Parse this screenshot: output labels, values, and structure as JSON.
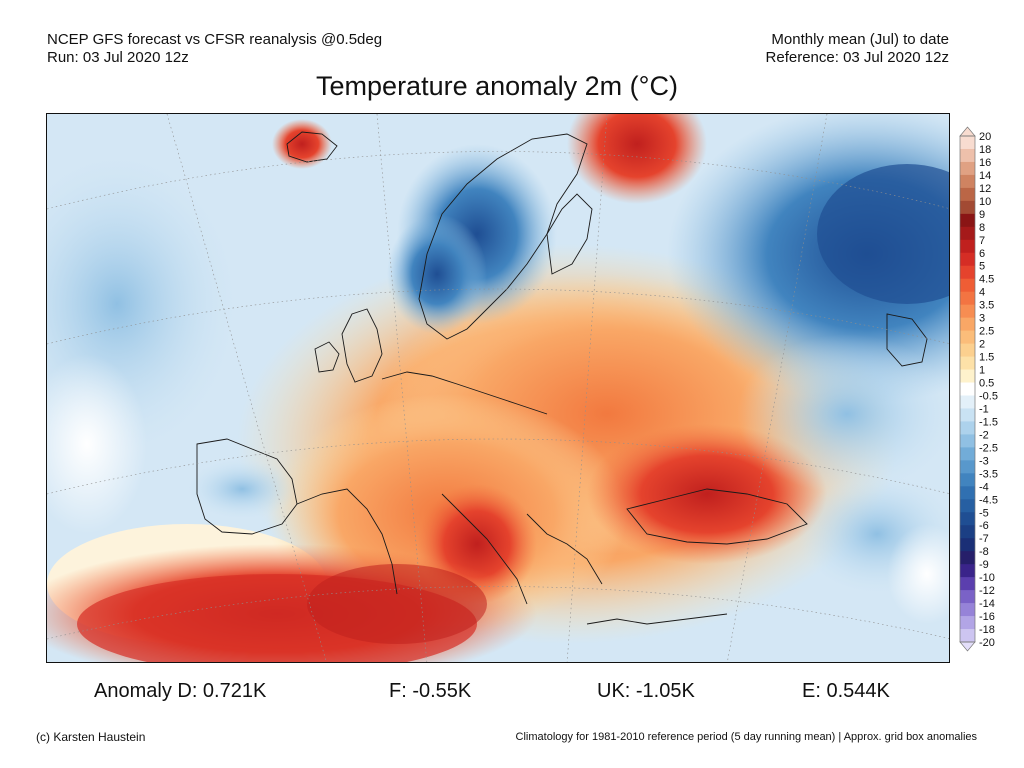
{
  "header": {
    "left_line1": "NCEP GFS forecast vs CFSR reanalysis @0.5deg",
    "left_line2": "Run: 03 Jul 2020 12z",
    "right_line1": "Monthly mean (Jul) to date",
    "right_line2": "Reference: 03 Jul 2020 12z"
  },
  "title": "Temperature anomaly 2m (°C)",
  "colorbar": {
    "levels": [
      "20",
      "18",
      "16",
      "14",
      "12",
      "10",
      "9",
      "8",
      "7",
      "6",
      "5",
      "4.5",
      "4",
      "3.5",
      "3",
      "2.5",
      "2",
      "1.5",
      "1",
      "0.5",
      "-0.5",
      "-1",
      "-1.5",
      "-2",
      "-2.5",
      "-3",
      "-3.5",
      "-4",
      "-4.5",
      "-5",
      "-6",
      "-7",
      "-8",
      "-9",
      "-10",
      "-12",
      "-14",
      "-16",
      "-18",
      "-20"
    ],
    "colors": [
      "#f8dcd0",
      "#eec0ab",
      "#e0a183",
      "#cf8361",
      "#bb6646",
      "#a24a33",
      "#8a1515",
      "#a51a1a",
      "#c0201e",
      "#d52d25",
      "#e5432d",
      "#ef5d35",
      "#f37442",
      "#f78d52",
      "#f9a766",
      "#fbbd7a",
      "#fcd08f",
      "#fde1a8",
      "#fef2cc",
      "#ffffff",
      "#e3f0f9",
      "#c9e2f3",
      "#add2ec",
      "#90c0e3",
      "#72acd8",
      "#5898cc",
      "#4184bf",
      "#3070b1",
      "#265fa2",
      "#1f4e93",
      "#1b3f84",
      "#1a2f76",
      "#261f6a",
      "#3a248a",
      "#5b3fae",
      "#7a62c7",
      "#9683d8",
      "#b2a5e6",
      "#cdc5f1",
      "#e3defa"
    ]
  },
  "stats": {
    "d": "Anomaly D: 0.721K",
    "f": "F: -0.55K",
    "uk": "UK: -1.05K",
    "e": "E: 0.544K"
  },
  "footer": {
    "left": "(c) Karsten Haustein",
    "right": "Climatology for 1981-2010 reference period (5 day running mean) | Approx. grid box anomalies"
  }
}
